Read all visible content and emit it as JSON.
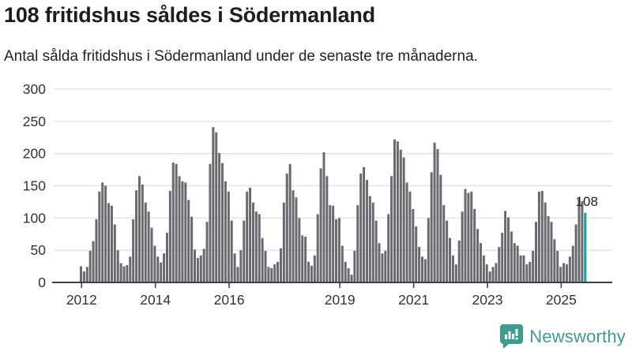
{
  "header": {
    "title": "108 fritidshus såldes i Södermanland",
    "subtitle": "Antal sålda fritidshus i Södermanland under de senaste tre månaderna."
  },
  "chart_data": {
    "type": "bar",
    "title": "108 fritidshus såldes i Södermanland",
    "xlabel": "",
    "ylabel": "",
    "x_months": {
      "start": "2012-01",
      "end": "2025-09",
      "freq": "monthly"
    },
    "series": [
      {
        "name": "Antal sålda fritidshus",
        "values": [
          25,
          17,
          24,
          49,
          64,
          98,
          141,
          155,
          150,
          123,
          119,
          90,
          50,
          30,
          25,
          27,
          40,
          98,
          143,
          165,
          152,
          124,
          110,
          85,
          57,
          40,
          31,
          45,
          77,
          142,
          186,
          184,
          165,
          157,
          155,
          128,
          102,
          51,
          38,
          42,
          52,
          94,
          184,
          241,
          233,
          201,
          185,
          157,
          141,
          96,
          45,
          24,
          50,
          96,
          141,
          147,
          124,
          110,
          106,
          69,
          49,
          24,
          22,
          28,
          32,
          53,
          124,
          169,
          184,
          143,
          132,
          100,
          73,
          71,
          32,
          26,
          42,
          106,
          177,
          202,
          165,
          120,
          119,
          98,
          100,
          57,
          32,
          22,
          12,
          49,
          120,
          169,
          179,
          159,
          134,
          124,
          96,
          61,
          45,
          49,
          106,
          165,
          222,
          219,
          206,
          194,
          155,
          141,
          114,
          87,
          55,
          40,
          36,
          100,
          171,
          217,
          207,
          167,
          120,
          96,
          69,
          42,
          28,
          65,
          110,
          145,
          139,
          141,
          114,
          83,
          61,
          42,
          28,
          17,
          24,
          30,
          55,
          77,
          111,
          101,
          79,
          61,
          57,
          42,
          42,
          28,
          32,
          49,
          94,
          141,
          142,
          124,
          103,
          94,
          67,
          49,
          24,
          30,
          28,
          40,
          57,
          90,
          130,
          126,
          108
        ]
      }
    ],
    "ylim": [
      0,
      300
    ],
    "yticks": [
      "0",
      "50",
      "100",
      "150",
      "200",
      "250",
      "300"
    ],
    "xtick_labels": [
      "2012",
      "2014",
      "2016",
      "2019",
      "2021",
      "2023",
      "2025"
    ],
    "xtick_years": [
      2012,
      2014,
      2016,
      2019,
      2021,
      2023,
      2025
    ],
    "grid": true,
    "legend": "none",
    "bar_color": "#69696f",
    "highlight": {
      "position": "last",
      "value": 108,
      "label": "108",
      "color": "#00a5a5"
    }
  },
  "colors": {
    "title": "#1d1d1d",
    "subtitle": "#222222",
    "bar": "#69696f",
    "highlight": "#00a5a5",
    "gridline": "#e2e2e2",
    "axis_line": "#404040",
    "tick_text": "#333333",
    "brand": "#3d9b8f"
  },
  "footer": {
    "brand": "Newsworthy"
  }
}
